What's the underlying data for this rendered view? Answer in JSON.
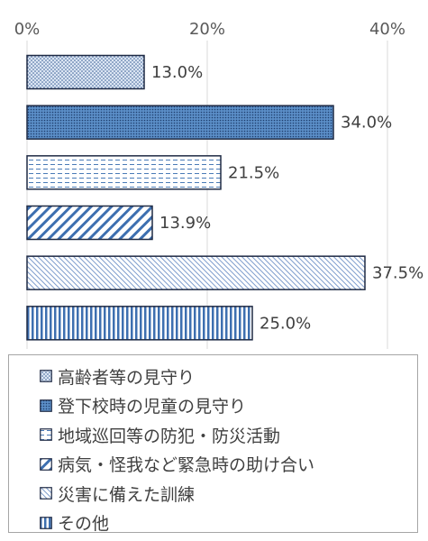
{
  "chart_data": {
    "type": "bar",
    "orientation": "horizontal",
    "categories": [
      "高齢者等の見守り",
      "登下校時の児童の見守り",
      "地域巡回等の防犯・防災活動",
      "病気・怪我など緊急時の助け合い",
      "災害に備えた訓練",
      "その他"
    ],
    "values": [
      13.0,
      34.0,
      21.5,
      13.9,
      37.5,
      25.0
    ],
    "value_labels": [
      "13.0%",
      "34.0%",
      "21.5%",
      "13.9%",
      "37.5%",
      "25.0%"
    ],
    "x_ticks": [
      "0%",
      "20%",
      "40%"
    ],
    "xlim": [
      0,
      40
    ],
    "x_tick_position": "top",
    "grid": true,
    "legend_position": "bottom",
    "bar_styles": [
      {
        "fill": "#cdd9ee",
        "pattern": "dots",
        "stroke": "#1f2a44"
      },
      {
        "fill": "#5b8ec7",
        "pattern": "dense-dots",
        "stroke": "#1f2a44"
      },
      {
        "fill": "#ffffff",
        "pattern": "horizontal-dashes",
        "stroke": "#1f2a44"
      },
      {
        "fill": "#ffffff",
        "pattern": "diagonal-stripes",
        "stroke": "#1f2a44"
      },
      {
        "fill": "#ffffff",
        "pattern": "fine-diagonal",
        "stroke": "#1f2a44"
      },
      {
        "fill": "#ffffff",
        "pattern": "vertical-stripes",
        "stroke": "#1f2a44"
      }
    ]
  }
}
